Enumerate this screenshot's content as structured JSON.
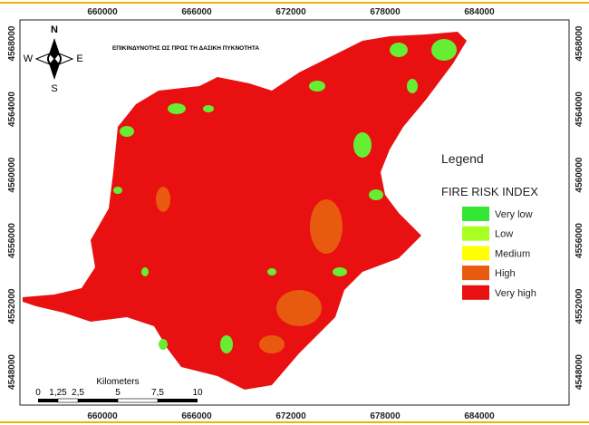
{
  "header": {
    "title": "ΕΠΙΚΙΝΔΥΝΟΤΗΣ ΩΣ ΠΡΟΣ ΤΗ ΔΑΣΙΚΗ ΠΥΚΝΟΤΗΤΑ"
  },
  "axes": {
    "x_ticks": [
      "660000",
      "666000",
      "672000",
      "678000",
      "684000"
    ],
    "y_ticks": [
      "4568000",
      "4564000",
      "4560000",
      "4556000",
      "4552000",
      "4548000"
    ]
  },
  "compass": {
    "north": "N",
    "south": "S",
    "east": "E",
    "west": "W"
  },
  "legend": {
    "heading": "Legend",
    "title": "FIRE RISK INDEX",
    "items": [
      {
        "label": "Very low",
        "color": "#33e633"
      },
      {
        "label": "Low",
        "color": "#aaff22"
      },
      {
        "label": "Medium",
        "color": "#ffff00"
      },
      {
        "label": "High",
        "color": "#e85a10"
      },
      {
        "label": "Very high",
        "color": "#e81010"
      }
    ]
  },
  "scale_bar": {
    "unit": "Kilometers",
    "labels": [
      "0",
      "1,25",
      "2,5",
      "5",
      "7,5",
      "10"
    ]
  }
}
